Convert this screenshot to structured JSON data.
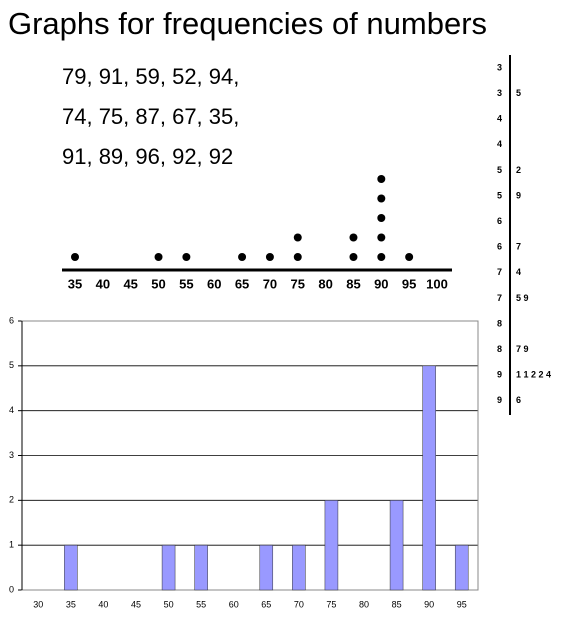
{
  "title": "Graphs for frequencies of numbers",
  "data_lines": [
    "79, 91, 59, 52, 94,",
    "74, 75, 87, 67, 35,",
    "91, 89, 96, 92, 92"
  ],
  "chart_data": [
    {
      "type": "dot",
      "categories": [
        "35",
        "40",
        "45",
        "50",
        "55",
        "60",
        "65",
        "70",
        "75",
        "80",
        "85",
        "90",
        "95",
        "100"
      ],
      "values": [
        1,
        0,
        0,
        1,
        1,
        0,
        1,
        1,
        2,
        0,
        2,
        5,
        1,
        0
      ],
      "color": "#000000"
    },
    {
      "type": "bar",
      "categories": [
        "30",
        "35",
        "40",
        "45",
        "50",
        "55",
        "60",
        "65",
        "70",
        "75",
        "80",
        "85",
        "90",
        "95"
      ],
      "values": [
        0,
        1,
        0,
        0,
        1,
        1,
        0,
        1,
        1,
        2,
        0,
        2,
        5,
        1
      ],
      "color": "#9999ff",
      "ylim": [
        0,
        6
      ],
      "yticks": [
        0,
        1,
        2,
        3,
        4,
        5,
        6
      ],
      "grid": true
    }
  ],
  "stem_leaf": {
    "rows": [
      [
        "3",
        ""
      ],
      [
        "3",
        "5"
      ],
      [
        "4",
        ""
      ],
      [
        "4",
        ""
      ],
      [
        "5",
        "2"
      ],
      [
        "5",
        "9"
      ],
      [
        "6",
        ""
      ],
      [
        "6",
        "7"
      ],
      [
        "7",
        "4"
      ],
      [
        "7",
        "5 9"
      ],
      [
        "8",
        ""
      ],
      [
        "8",
        "7 9"
      ],
      [
        "9",
        "1 1 2 2 4"
      ],
      [
        "9",
        "6"
      ]
    ]
  }
}
